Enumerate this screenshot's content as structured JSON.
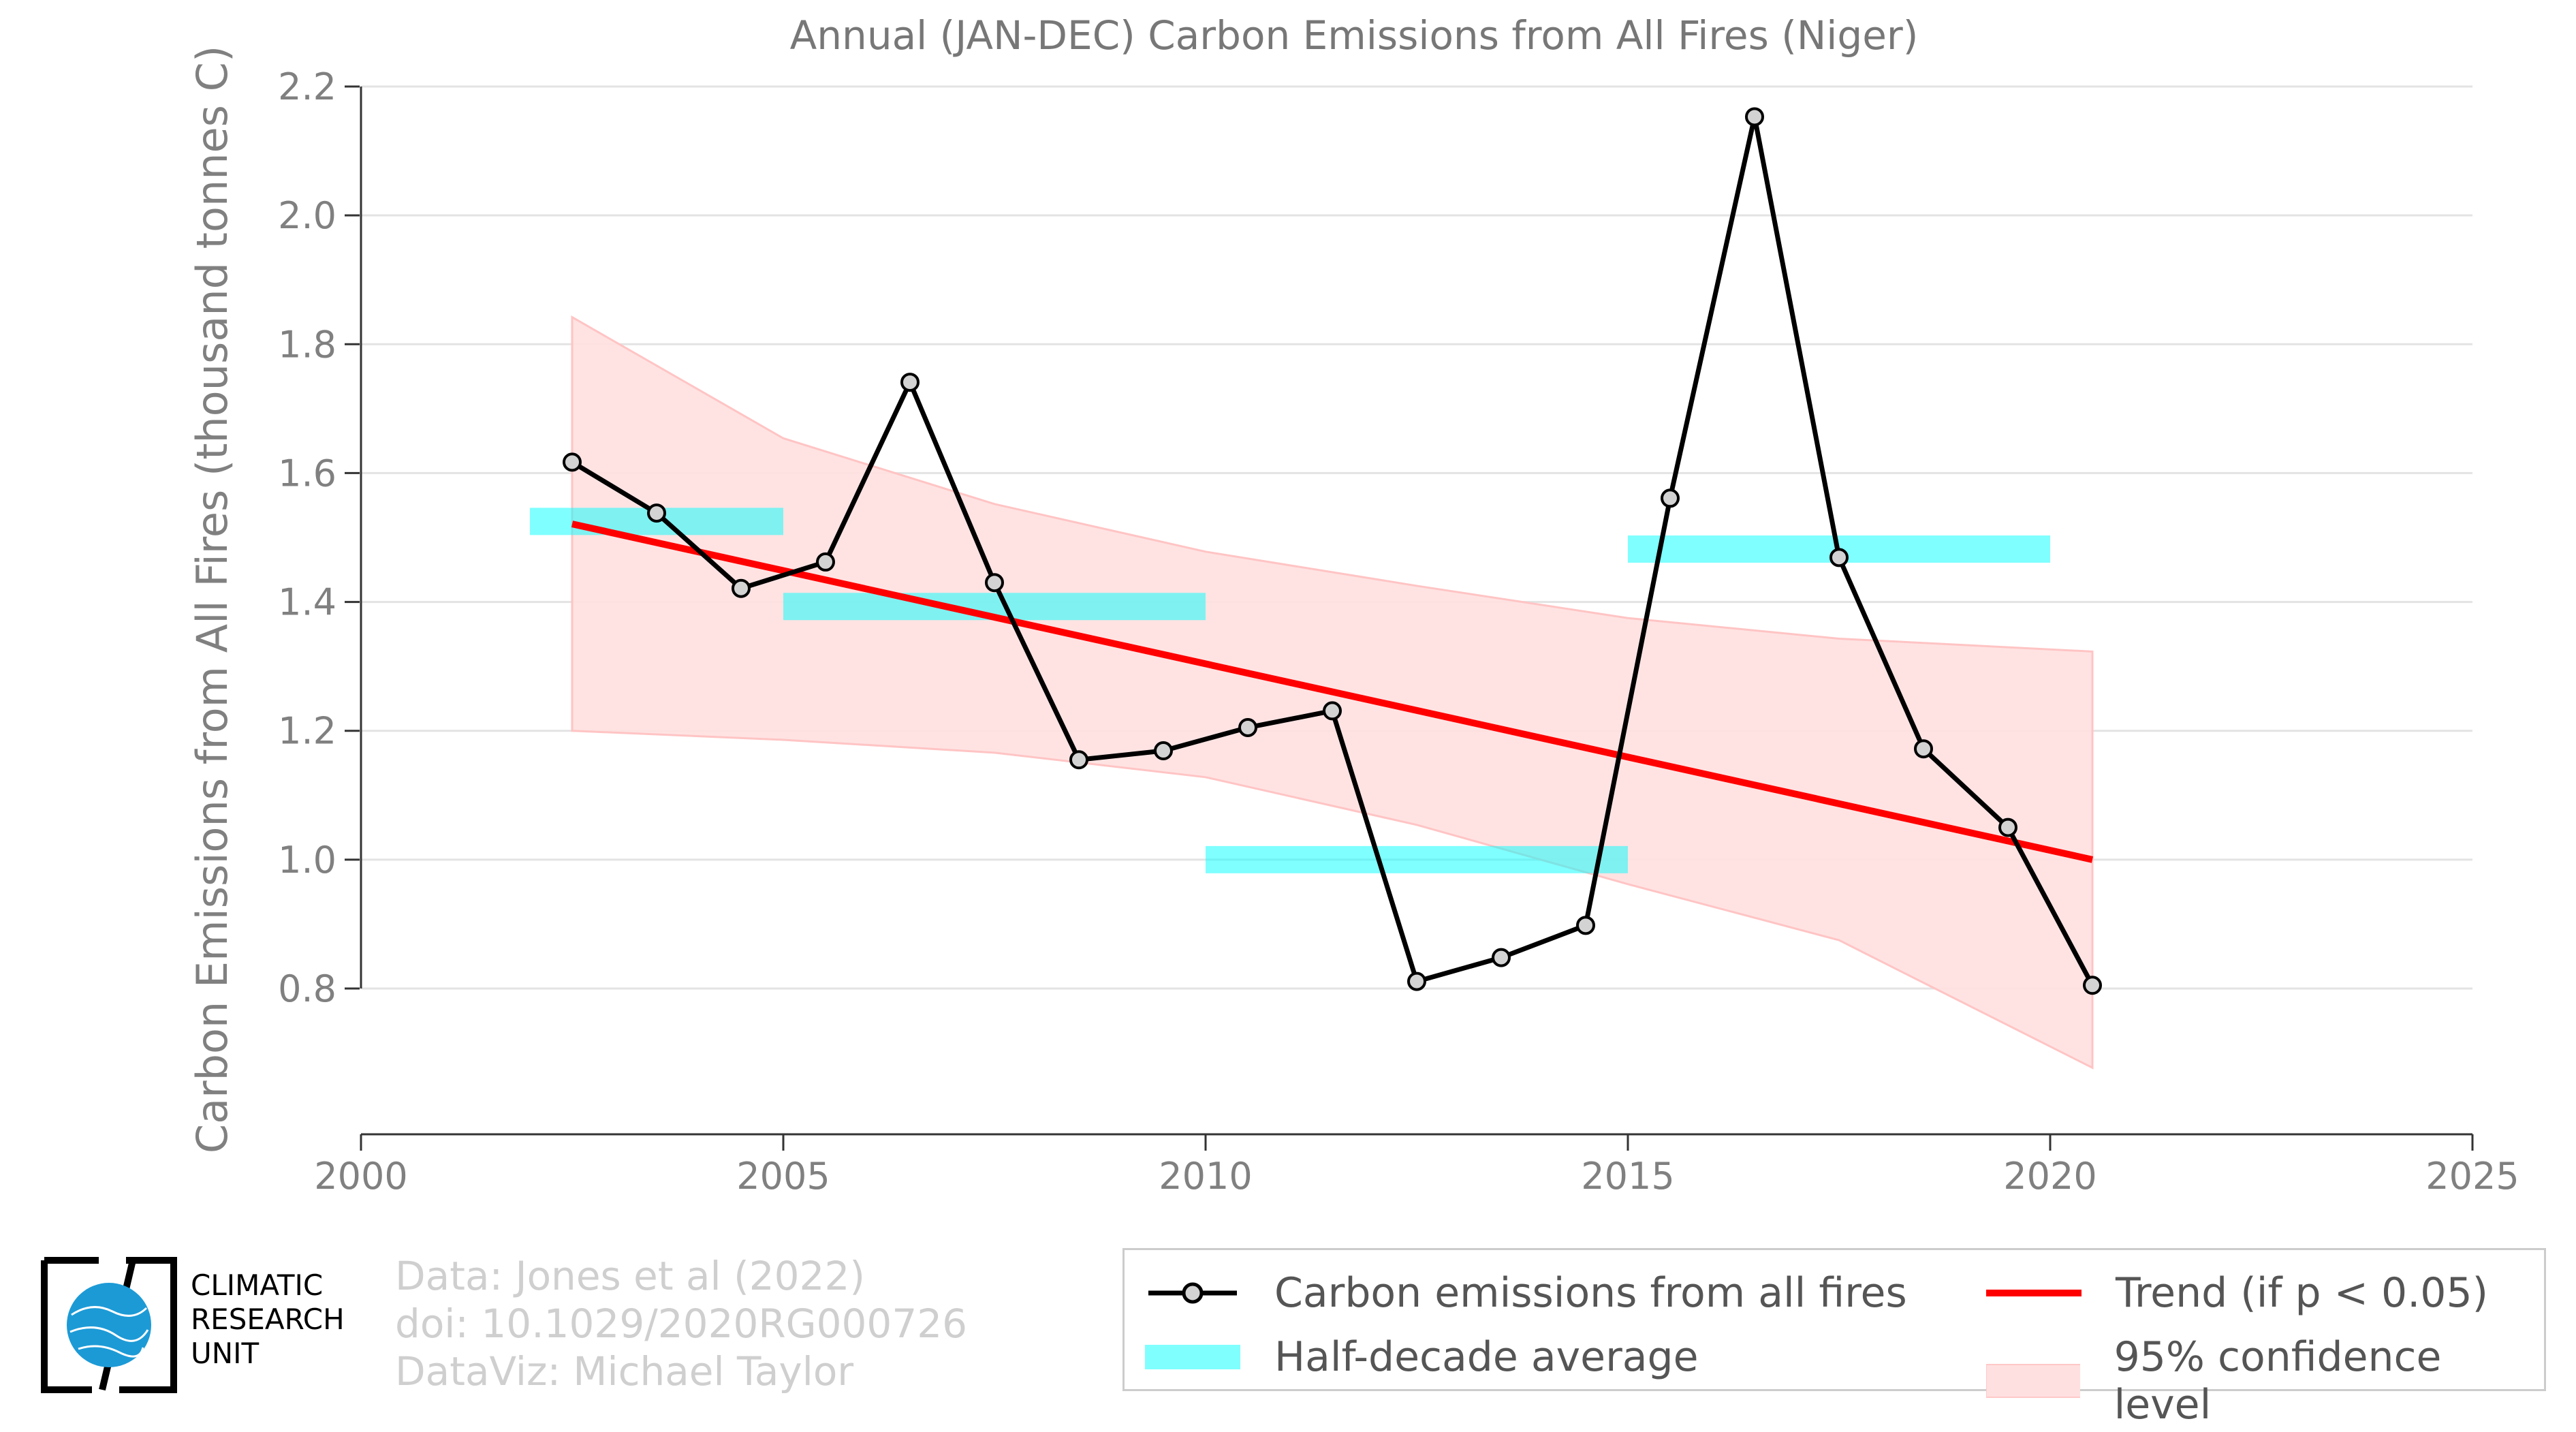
{
  "chart_data": {
    "type": "line",
    "title": "Annual (JAN-DEC) Carbon Emissions from All Fires (Niger)",
    "ylabel": "Carbon Emissions from All Fires (thousand tonnes C)",
    "xlabel": "",
    "xlim": [
      2000,
      2025
    ],
    "ylim": [
      0.58,
      2.22
    ],
    "xticks": [
      "2000",
      "2005",
      "2010",
      "2015",
      "2020",
      "2025"
    ],
    "yticks": [
      "0.8",
      "1.0",
      "1.2",
      "1.4",
      "1.6",
      "1.8",
      "2.0",
      "2.2"
    ],
    "grid": "horizontal",
    "series": [
      {
        "name": "Carbon emissions from all fires",
        "color": "#000000",
        "x": [
          2002.5,
          2003.5,
          2004.5,
          2005.5,
          2006.5,
          2007.5,
          2008.5,
          2009.5,
          2010.5,
          2011.5,
          2012.5,
          2013.5,
          2014.5,
          2015.5,
          2016.5,
          2017.5,
          2018.5,
          2019.5,
          2020.5
        ],
        "y": [
          1.617,
          1.538,
          1.421,
          1.462,
          1.741,
          1.43,
          1.155,
          1.169,
          1.205,
          1.231,
          0.811,
          0.848,
          0.898,
          1.561,
          2.153,
          1.469,
          1.172,
          1.05,
          0.805
        ]
      }
    ],
    "half_decade_average": {
      "name": "Half-decade average",
      "color": "#00ffff",
      "segments": [
        {
          "x0": 2002,
          "x1": 2005,
          "y": 1.525
        },
        {
          "x0": 2005,
          "x1": 2010,
          "y": 1.393
        },
        {
          "x0": 2010,
          "x1": 2015,
          "y": 1.0
        },
        {
          "x0": 2015,
          "x1": 2020,
          "y": 1.482
        }
      ]
    },
    "trend": {
      "name": "Trend (if p < 0.05)",
      "color": "#ff0000",
      "x": [
        2002.5,
        2020.5
      ],
      "y": [
        1.521,
        1.0
      ]
    },
    "confidence": {
      "name": "95% confidence level",
      "color": "#ffcccc",
      "x": [
        2002.5,
        2005,
        2007.5,
        2010,
        2012.5,
        2015,
        2017.5,
        2020.5
      ],
      "upper": [
        1.842,
        1.654,
        1.552,
        1.478,
        1.425,
        1.375,
        1.343,
        1.323
      ],
      "lower": [
        1.2,
        1.186,
        1.166,
        1.128,
        1.054,
        0.962,
        0.875,
        0.677
      ]
    },
    "legend_position": "bottom-right"
  },
  "credits": {
    "line1": "Data: Jones et al (2022)",
    "line2": "doi: 10.1029/2020RG000726",
    "line3": "DataViz: Michael Taylor"
  },
  "logo": {
    "line1": "CLIMATIC",
    "line2": "RESEARCH",
    "line3": "UNIT"
  }
}
